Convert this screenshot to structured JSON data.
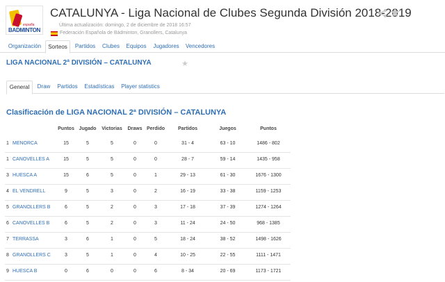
{
  "header": {
    "title": "CATALUNYA - Liga Nacional de Clubes Segunda División 2018-2019",
    "logo_text": "BADMINTON",
    "logo_small": "españa",
    "updated": "Última actualización: domingo, 2 de diciembre de 2018 16:57",
    "federation": "Federación Española de Bádminton, Granollers, Catalunya"
  },
  "main_tabs": [
    "Organización",
    "Sorteos",
    "Partidos",
    "Clubes",
    "Equipos",
    "Jugadores",
    "Vencedores"
  ],
  "section_title": "LIGA NACIONAL 2ª DIVISIÓN – CATALUNYA",
  "sub_tabs": [
    "General",
    "Draw",
    "Partidos",
    "Estadísticas",
    "Player statistics"
  ],
  "classification_title": "Clasificación de LIGA NACIONAL 2ª DIVISIÓN – CATALUNYA",
  "table": {
    "headers": [
      "Puntos",
      "Jugado",
      "Victorias",
      "Draws",
      "Perdido",
      "Partidos",
      "Juegos",
      "Puntos"
    ],
    "rows": [
      {
        "rank": "1",
        "team": "MENORCA",
        "puntos": "15",
        "jugado": "5",
        "victorias": "5",
        "draws": "0",
        "perdido": "0",
        "partidos": "31 - 4",
        "juegos": "63 - 10",
        "puntos2": "1486 - 802"
      },
      {
        "rank": "1",
        "team": "CANOVELLES A",
        "puntos": "15",
        "jugado": "5",
        "victorias": "5",
        "draws": "0",
        "perdido": "0",
        "partidos": "28 - 7",
        "juegos": "59 - 14",
        "puntos2": "1435 - 958"
      },
      {
        "rank": "3",
        "team": "HUESCA A",
        "puntos": "15",
        "jugado": "6",
        "victorias": "5",
        "draws": "0",
        "perdido": "1",
        "partidos": "29 - 13",
        "juegos": "61 - 30",
        "puntos2": "1676 - 1300"
      },
      {
        "rank": "4",
        "team": "EL VENDRELL",
        "puntos": "9",
        "jugado": "5",
        "victorias": "3",
        "draws": "0",
        "perdido": "2",
        "partidos": "16 - 19",
        "juegos": "33 - 38",
        "puntos2": "1159 - 1253"
      },
      {
        "rank": "5",
        "team": "GRANOLLERS B",
        "puntos": "6",
        "jugado": "5",
        "victorias": "2",
        "draws": "0",
        "perdido": "3",
        "partidos": "17 - 18",
        "juegos": "37 - 39",
        "puntos2": "1274 - 1264"
      },
      {
        "rank": "6",
        "team": "CANOVELLES B",
        "puntos": "6",
        "jugado": "5",
        "victorias": "2",
        "draws": "0",
        "perdido": "3",
        "partidos": "11 - 24",
        "juegos": "24 - 50",
        "puntos2": "968 - 1385"
      },
      {
        "rank": "7",
        "team": "TERRASSA",
        "puntos": "3",
        "jugado": "6",
        "victorias": "1",
        "draws": "0",
        "perdido": "5",
        "partidos": "18 - 24",
        "juegos": "38 - 52",
        "puntos2": "1498 - 1626"
      },
      {
        "rank": "8",
        "team": "GRANOLLERS C",
        "puntos": "3",
        "jugado": "5",
        "victorias": "1",
        "draws": "0",
        "perdido": "4",
        "partidos": "10 - 25",
        "juegos": "22 - 55",
        "puntos2": "1111 - 1471"
      },
      {
        "rank": "9",
        "team": "HUESCA B",
        "puntos": "0",
        "jugado": "6",
        "victorias": "0",
        "draws": "0",
        "perdido": "6",
        "partidos": "8 - 34",
        "juegos": "20 - 69",
        "puntos2": "1173 - 1721"
      }
    ]
  }
}
